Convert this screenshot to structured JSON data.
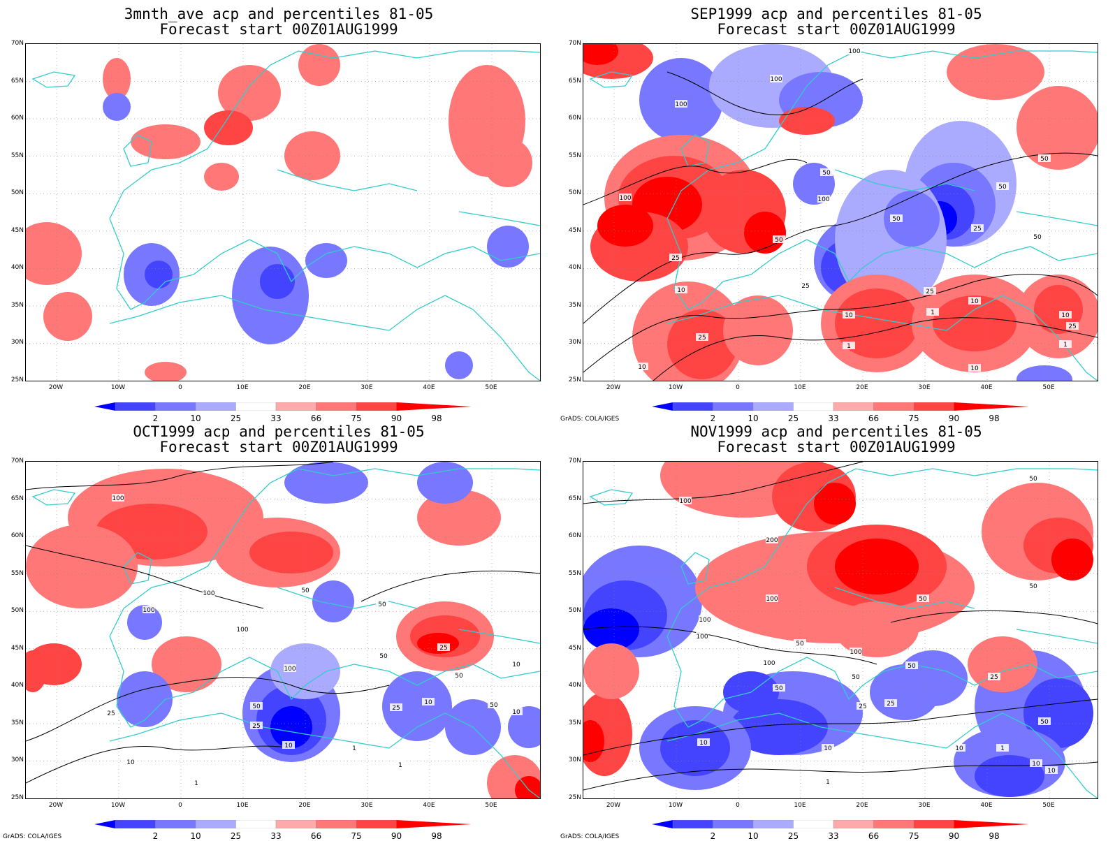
{
  "credit": "GrADS: COLA/IGES",
  "lat_labels": [
    "70N",
    "65N",
    "60N",
    "55N",
    "50N",
    "45N",
    "40N",
    "35N",
    "30N",
    "25N"
  ],
  "lon_labels": [
    "20W",
    "10W",
    "0",
    "10E",
    "20E",
    "30E",
    "40E",
    "50E"
  ],
  "legend": {
    "labels": [
      "2",
      "10",
      "25",
      "33",
      "66",
      "75",
      "90",
      "98"
    ],
    "colors": [
      "#0000ff",
      "#4444ff",
      "#7777ff",
      "#aaaaff",
      "#ffffff",
      "#ffaaaa",
      "#ff7777",
      "#ff4444",
      "#ff0000"
    ]
  },
  "colors": {
    "coastline": "#33cccc",
    "contour": "#000000",
    "grid": "#888888"
  },
  "panels": [
    {
      "title_line1": "3mnth_ave acp and percentiles 81-05",
      "title_line2": "Forecast start 00Z01AUG1999",
      "show_credit": false,
      "contour_labels": []
    },
    {
      "title_line1": "SEP1999 acp and percentiles 81-05",
      "title_line2": "Forecast start 00Z01AUG1999",
      "show_credit": true,
      "contour_labels": [
        "100",
        "100",
        "100",
        "100",
        "100",
        "50",
        "50",
        "50",
        "50",
        "50",
        "50",
        "25",
        "25",
        "25",
        "25",
        "25",
        "25",
        "10",
        "10",
        "10",
        "10",
        "10",
        "10",
        "1",
        "1",
        "1"
      ]
    },
    {
      "title_line1": "OCT1999 acp and percentiles 81-05",
      "title_line2": "Forecast start 00Z01AUG1999",
      "show_credit": true,
      "contour_labels": [
        "100",
        "100",
        "100",
        "100",
        "100",
        "50",
        "50",
        "50",
        "50",
        "50",
        "50",
        "25",
        "25",
        "25",
        "25",
        "10",
        "10",
        "10",
        "10",
        "10",
        "1",
        "1",
        "1"
      ]
    },
    {
      "title_line1": "NOV1999 acp and percentiles 81-05",
      "title_line2": "Forecast start 00Z01AUG1999",
      "show_credit": true,
      "contour_labels": [
        "100",
        "100",
        "100",
        "100",
        "100",
        "100",
        "200",
        "50",
        "50",
        "50",
        "50",
        "50",
        "50",
        "50",
        "50",
        "25",
        "25",
        "25",
        "10",
        "10",
        "10",
        "10",
        "10",
        "1",
        "1"
      ]
    }
  ]
}
